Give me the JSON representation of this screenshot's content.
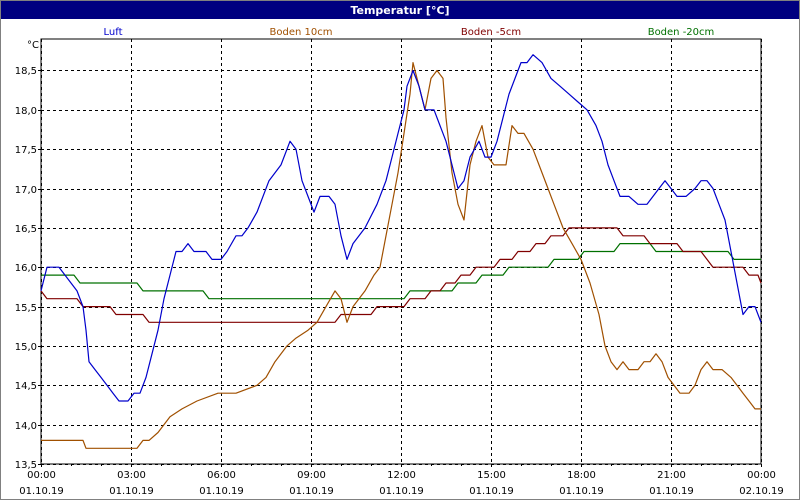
{
  "window": {
    "title": "Temperatur [°C]"
  },
  "chart_data": {
    "type": "line",
    "title": "Temperatur [°C]",
    "ylabel": "°C",
    "xlabel": "",
    "ylim": [
      13.5,
      18.9
    ],
    "xlim": [
      0,
      24
    ],
    "grid": true,
    "legend_position": "top",
    "y_ticks": [
      "13,5",
      "14,0",
      "14,5",
      "15,0",
      "15,5",
      "16,0",
      "16,5",
      "17,0",
      "17,5",
      "18,0",
      "18,5"
    ],
    "y_tick_values": [
      13.5,
      14.0,
      14.5,
      15.0,
      15.5,
      16.0,
      16.5,
      17.0,
      17.5,
      18.0,
      18.5
    ],
    "x_ticks": [
      {
        "hour": 0,
        "time": "00:00",
        "date": "01.10.19"
      },
      {
        "hour": 3,
        "time": "03:00",
        "date": "01.10.19"
      },
      {
        "hour": 6,
        "time": "06:00",
        "date": "01.10.19"
      },
      {
        "hour": 9,
        "time": "09:00",
        "date": "01.10.19"
      },
      {
        "hour": 12,
        "time": "12:00",
        "date": "01.10.19"
      },
      {
        "hour": 15,
        "time": "15:00",
        "date": "01.10.19"
      },
      {
        "hour": 18,
        "time": "18:00",
        "date": "01.10.19"
      },
      {
        "hour": 21,
        "time": "21:00",
        "date": "01.10.19"
      },
      {
        "hour": 24,
        "time": "00:00",
        "date": "02.10.19"
      }
    ],
    "series": [
      {
        "name": "Luft",
        "color": "#0000cc",
        "points": [
          [
            0,
            15.7
          ],
          [
            0.2,
            16.0
          ],
          [
            0.6,
            16.0
          ],
          [
            1.0,
            15.8
          ],
          [
            1.2,
            15.7
          ],
          [
            1.4,
            15.5
          ],
          [
            1.5,
            15.2
          ],
          [
            1.6,
            14.8
          ],
          [
            1.8,
            14.7
          ],
          [
            2.0,
            14.6
          ],
          [
            2.2,
            14.5
          ],
          [
            2.4,
            14.4
          ],
          [
            2.6,
            14.3
          ],
          [
            2.9,
            14.3
          ],
          [
            3.1,
            14.4
          ],
          [
            3.3,
            14.4
          ],
          [
            3.5,
            14.6
          ],
          [
            3.7,
            14.9
          ],
          [
            3.9,
            15.2
          ],
          [
            4.1,
            15.6
          ],
          [
            4.3,
            15.9
          ],
          [
            4.5,
            16.2
          ],
          [
            4.7,
            16.2
          ],
          [
            4.9,
            16.3
          ],
          [
            5.1,
            16.2
          ],
          [
            5.5,
            16.2
          ],
          [
            5.7,
            16.1
          ],
          [
            6.0,
            16.1
          ],
          [
            6.2,
            16.2
          ],
          [
            6.5,
            16.4
          ],
          [
            6.7,
            16.4
          ],
          [
            6.9,
            16.5
          ],
          [
            7.2,
            16.7
          ],
          [
            7.6,
            17.1
          ],
          [
            8.0,
            17.3
          ],
          [
            8.3,
            17.6
          ],
          [
            8.5,
            17.5
          ],
          [
            8.7,
            17.1
          ],
          [
            8.9,
            16.9
          ],
          [
            9.1,
            16.7
          ],
          [
            9.3,
            16.9
          ],
          [
            9.6,
            16.9
          ],
          [
            9.8,
            16.8
          ],
          [
            10.0,
            16.4
          ],
          [
            10.2,
            16.1
          ],
          [
            10.4,
            16.3
          ],
          [
            10.8,
            16.5
          ],
          [
            11.2,
            16.8
          ],
          [
            11.5,
            17.1
          ],
          [
            11.7,
            17.4
          ],
          [
            11.9,
            17.7
          ],
          [
            12.1,
            18.0
          ],
          [
            12.2,
            18.3
          ],
          [
            12.4,
            18.5
          ],
          [
            12.6,
            18.3
          ],
          [
            12.8,
            18.0
          ],
          [
            13.1,
            18.0
          ],
          [
            13.3,
            17.8
          ],
          [
            13.5,
            17.6
          ],
          [
            13.7,
            17.3
          ],
          [
            13.9,
            17.0
          ],
          [
            14.1,
            17.1
          ],
          [
            14.3,
            17.4
          ],
          [
            14.6,
            17.6
          ],
          [
            14.8,
            17.4
          ],
          [
            15.0,
            17.4
          ],
          [
            15.2,
            17.6
          ],
          [
            15.4,
            17.9
          ],
          [
            15.6,
            18.2
          ],
          [
            15.8,
            18.4
          ],
          [
            16.0,
            18.6
          ],
          [
            16.2,
            18.6
          ],
          [
            16.4,
            18.7
          ],
          [
            16.7,
            18.6
          ],
          [
            17.0,
            18.4
          ],
          [
            17.3,
            18.3
          ],
          [
            17.6,
            18.2
          ],
          [
            17.9,
            18.1
          ],
          [
            18.2,
            18.0
          ],
          [
            18.5,
            17.8
          ],
          [
            18.7,
            17.6
          ],
          [
            18.9,
            17.3
          ],
          [
            19.1,
            17.1
          ],
          [
            19.3,
            16.9
          ],
          [
            19.6,
            16.9
          ],
          [
            19.9,
            16.8
          ],
          [
            20.2,
            16.8
          ],
          [
            20.4,
            16.9
          ],
          [
            20.6,
            17.0
          ],
          [
            20.8,
            17.1
          ],
          [
            21.0,
            17.0
          ],
          [
            21.2,
            16.9
          ],
          [
            21.5,
            16.9
          ],
          [
            21.8,
            17.0
          ],
          [
            22.0,
            17.1
          ],
          [
            22.2,
            17.1
          ],
          [
            22.4,
            17.0
          ],
          [
            22.6,
            16.8
          ],
          [
            22.8,
            16.6
          ],
          [
            23.0,
            16.2
          ],
          [
            23.2,
            15.8
          ],
          [
            23.4,
            15.4
          ],
          [
            23.6,
            15.5
          ],
          [
            23.8,
            15.5
          ],
          [
            24.0,
            15.3
          ]
        ]
      },
      {
        "name": "Boden 10cm",
        "color": "#a05000",
        "points": [
          [
            0,
            13.8
          ],
          [
            1.4,
            13.8
          ],
          [
            1.5,
            13.7
          ],
          [
            3.2,
            13.7
          ],
          [
            3.4,
            13.8
          ],
          [
            3.6,
            13.8
          ],
          [
            3.9,
            13.9
          ],
          [
            4.3,
            14.1
          ],
          [
            4.7,
            14.2
          ],
          [
            5.2,
            14.3
          ],
          [
            5.9,
            14.4
          ],
          [
            6.5,
            14.4
          ],
          [
            7.2,
            14.5
          ],
          [
            7.5,
            14.6
          ],
          [
            7.8,
            14.8
          ],
          [
            8.2,
            15.0
          ],
          [
            8.5,
            15.1
          ],
          [
            8.9,
            15.2
          ],
          [
            9.2,
            15.3
          ],
          [
            9.5,
            15.5
          ],
          [
            9.8,
            15.7
          ],
          [
            10.0,
            15.6
          ],
          [
            10.2,
            15.3
          ],
          [
            10.4,
            15.5
          ],
          [
            10.8,
            15.7
          ],
          [
            11.1,
            15.9
          ],
          [
            11.3,
            16.0
          ],
          [
            11.5,
            16.4
          ],
          [
            11.7,
            16.8
          ],
          [
            11.9,
            17.2
          ],
          [
            12.1,
            17.7
          ],
          [
            12.3,
            18.2
          ],
          [
            12.4,
            18.6
          ],
          [
            12.6,
            18.3
          ],
          [
            12.8,
            18.0
          ],
          [
            13.0,
            18.4
          ],
          [
            13.2,
            18.5
          ],
          [
            13.4,
            18.4
          ],
          [
            13.5,
            17.9
          ],
          [
            13.7,
            17.2
          ],
          [
            13.9,
            16.8
          ],
          [
            14.1,
            16.6
          ],
          [
            14.3,
            17.3
          ],
          [
            14.5,
            17.6
          ],
          [
            14.7,
            17.8
          ],
          [
            14.9,
            17.4
          ],
          [
            15.1,
            17.3
          ],
          [
            15.3,
            17.3
          ],
          [
            15.5,
            17.3
          ],
          [
            15.7,
            17.8
          ],
          [
            15.9,
            17.7
          ],
          [
            16.1,
            17.7
          ],
          [
            16.4,
            17.5
          ],
          [
            16.6,
            17.3
          ],
          [
            16.9,
            17.0
          ],
          [
            17.1,
            16.8
          ],
          [
            17.4,
            16.5
          ],
          [
            17.7,
            16.3
          ],
          [
            18.0,
            16.1
          ],
          [
            18.3,
            15.8
          ],
          [
            18.6,
            15.4
          ],
          [
            18.8,
            15.0
          ],
          [
            19.0,
            14.8
          ],
          [
            19.2,
            14.7
          ],
          [
            19.4,
            14.8
          ],
          [
            19.6,
            14.7
          ],
          [
            19.9,
            14.7
          ],
          [
            20.1,
            14.8
          ],
          [
            20.3,
            14.8
          ],
          [
            20.5,
            14.9
          ],
          [
            20.7,
            14.8
          ],
          [
            20.9,
            14.6
          ],
          [
            21.1,
            14.5
          ],
          [
            21.3,
            14.4
          ],
          [
            21.6,
            14.4
          ],
          [
            21.8,
            14.5
          ],
          [
            22.0,
            14.7
          ],
          [
            22.2,
            14.8
          ],
          [
            22.4,
            14.7
          ],
          [
            22.7,
            14.7
          ],
          [
            23.0,
            14.6
          ],
          [
            23.2,
            14.5
          ],
          [
            23.4,
            14.4
          ],
          [
            23.6,
            14.3
          ],
          [
            23.8,
            14.2
          ],
          [
            24.0,
            14.2
          ]
        ]
      },
      {
        "name": "Boden -5cm",
        "color": "#800000",
        "points": [
          [
            0,
            15.7
          ],
          [
            0.2,
            15.6
          ],
          [
            1.2,
            15.6
          ],
          [
            1.4,
            15.5
          ],
          [
            2.3,
            15.5
          ],
          [
            2.5,
            15.4
          ],
          [
            3.4,
            15.4
          ],
          [
            3.6,
            15.3
          ],
          [
            9.8,
            15.3
          ],
          [
            10.0,
            15.4
          ],
          [
            11.0,
            15.4
          ],
          [
            11.2,
            15.5
          ],
          [
            12.1,
            15.5
          ],
          [
            12.3,
            15.6
          ],
          [
            12.8,
            15.6
          ],
          [
            13.0,
            15.7
          ],
          [
            13.3,
            15.7
          ],
          [
            13.5,
            15.8
          ],
          [
            13.8,
            15.8
          ],
          [
            14.0,
            15.9
          ],
          [
            14.3,
            15.9
          ],
          [
            14.5,
            16.0
          ],
          [
            15.1,
            16.0
          ],
          [
            15.3,
            16.1
          ],
          [
            15.7,
            16.1
          ],
          [
            15.9,
            16.2
          ],
          [
            16.3,
            16.2
          ],
          [
            16.5,
            16.3
          ],
          [
            16.8,
            16.3
          ],
          [
            17.0,
            16.4
          ],
          [
            17.4,
            16.4
          ],
          [
            17.6,
            16.5
          ],
          [
            19.2,
            16.5
          ],
          [
            19.4,
            16.4
          ],
          [
            20.1,
            16.4
          ],
          [
            20.3,
            16.3
          ],
          [
            21.2,
            16.3
          ],
          [
            21.4,
            16.2
          ],
          [
            22.0,
            16.2
          ],
          [
            22.2,
            16.1
          ],
          [
            22.4,
            16.0
          ],
          [
            23.4,
            16.0
          ],
          [
            23.6,
            15.9
          ],
          [
            23.9,
            15.9
          ],
          [
            24.0,
            15.8
          ]
        ]
      },
      {
        "name": "Boden -20cm",
        "color": "#007000",
        "points": [
          [
            0,
            15.9
          ],
          [
            1.1,
            15.9
          ],
          [
            1.3,
            15.8
          ],
          [
            3.2,
            15.8
          ],
          [
            3.4,
            15.7
          ],
          [
            5.4,
            15.7
          ],
          [
            5.6,
            15.6
          ],
          [
            12.1,
            15.6
          ],
          [
            12.3,
            15.7
          ],
          [
            13.7,
            15.7
          ],
          [
            13.9,
            15.8
          ],
          [
            14.5,
            15.8
          ],
          [
            14.7,
            15.9
          ],
          [
            15.4,
            15.9
          ],
          [
            15.6,
            16.0
          ],
          [
            16.9,
            16.0
          ],
          [
            17.1,
            16.1
          ],
          [
            17.9,
            16.1
          ],
          [
            18.1,
            16.2
          ],
          [
            19.1,
            16.2
          ],
          [
            19.3,
            16.3
          ],
          [
            20.3,
            16.3
          ],
          [
            20.5,
            16.2
          ],
          [
            22.9,
            16.2
          ],
          [
            23.1,
            16.1
          ],
          [
            24.0,
            16.1
          ]
        ]
      }
    ]
  }
}
